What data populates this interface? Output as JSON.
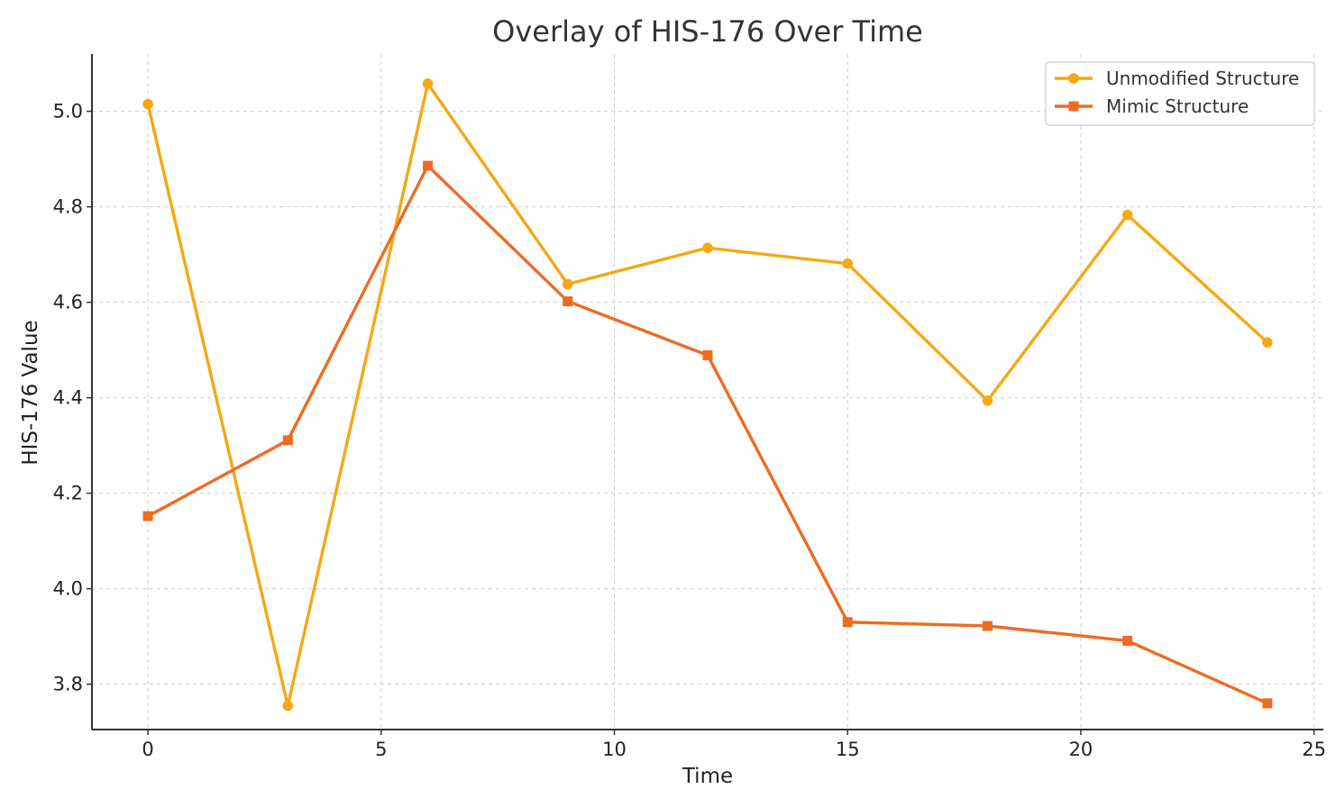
{
  "chart_data": {
    "type": "line",
    "title": "Overlay of HIS-176 Over Time",
    "xlabel": "Time",
    "ylabel": "HIS-176 Value",
    "xlim": [
      -1.2,
      25.2
    ],
    "ylim": [
      3.705,
      5.12
    ],
    "xticks": [
      0,
      5,
      10,
      15,
      20,
      25
    ],
    "yticks": [
      3.8,
      4.0,
      4.2,
      4.4,
      4.6,
      4.8,
      5.0
    ],
    "xtick_labels": [
      "0",
      "5",
      "10",
      "15",
      "20",
      "25"
    ],
    "ytick_labels": [
      "3.8",
      "4.0",
      "4.2",
      "4.4",
      "4.6",
      "4.8",
      "5.0"
    ],
    "grid": true,
    "legend_position": "top-right",
    "x": [
      0,
      3,
      6,
      9,
      12,
      15,
      18,
      21,
      24
    ],
    "series": [
      {
        "name": "Unmodified Structure",
        "color": "#F5A814",
        "marker": "circle",
        "values": [
          5.015,
          3.755,
          5.058,
          4.638,
          4.714,
          4.681,
          4.394,
          4.783,
          4.516
        ]
      },
      {
        "name": "Mimic Structure",
        "color": "#EE6B22",
        "marker": "square",
        "values": [
          4.152,
          4.311,
          4.886,
          4.602,
          4.489,
          3.93,
          3.922,
          3.891,
          3.76
        ]
      }
    ]
  }
}
